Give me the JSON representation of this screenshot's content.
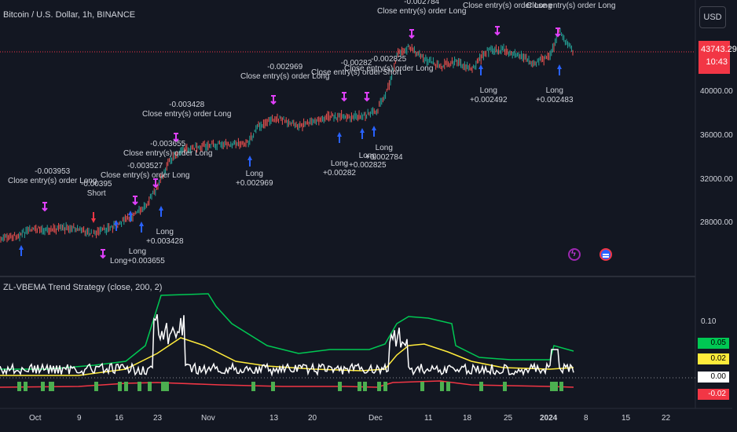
{
  "header": {
    "symbol_title": "Bitcoin / U.S. Dollar, 1h, BINANCE",
    "currency_button": "USD"
  },
  "price_tag": {
    "price": "43743.29",
    "countdown": "10:43",
    "color": "#f23645"
  },
  "price_axis": {
    "ticks": [
      "40000.00",
      "36000.00",
      "32000.00",
      "28000.00"
    ]
  },
  "indicator": {
    "title": "ZL-VBEMA Trend Strategy (close, 200, 2)",
    "axis_tick": "0.10",
    "badges": [
      {
        "value": "0.05",
        "bg": "#00c853",
        "fg": "#000000"
      },
      {
        "value": "0.02",
        "bg": "#ffeb3b",
        "fg": "#000000"
      },
      {
        "value": "0.00",
        "bg": "#ffffff",
        "fg": "#000000"
      },
      {
        "value": "-0.02",
        "bg": "#f23645",
        "fg": "#ffffff"
      }
    ]
  },
  "time_axis": {
    "ticks": [
      "Oct",
      "9",
      "16",
      "23",
      "Nov",
      "13",
      "20",
      "Dec",
      "11",
      "18",
      "25",
      "2024",
      "8",
      "15",
      "22"
    ]
  },
  "trade_labels": [
    {
      "line1": "-0.003953",
      "line2": "Close entry(s) order Long"
    },
    {
      "line1": "-0.00395",
      "line2": "Short"
    },
    {
      "line1": "-0.003527",
      "line2": "Close entry(s) order Long"
    },
    {
      "line1": "-0.003655",
      "line2": "Close entry(s) order Long"
    },
    {
      "line1": "-0.003428",
      "line2": "Close entry(s) order Long"
    },
    {
      "line1": "-0.002969",
      "line2": "Close entry(s) order Long"
    },
    {
      "line1": "-0.002825",
      "line2": "Close entry(s) order Long"
    },
    {
      "line1": "-0.00282",
      "line2": "Close entry(s) order Short"
    },
    {
      "line1": "-0.002784",
      "line2": "Close entry(s) order Long"
    },
    {
      "line1": "",
      "line2": "Close entry(s) order Long"
    },
    {
      "line1": "",
      "line2": "Close entry(s) order Long"
    },
    {
      "line1": "Long",
      "line2": "+0.003428"
    },
    {
      "line1": "Long",
      "line2": "Long+0.003655"
    },
    {
      "line1": "Long",
      "line2": "+0.002969"
    },
    {
      "line1": "Long",
      "line2": "+0.00282"
    },
    {
      "line1": "Long",
      "line2": "+0.002825"
    },
    {
      "line1": "Long",
      "line2": "+0.002784"
    },
    {
      "line1": "Long",
      "line2": "+0.002492"
    },
    {
      "line1": "Long",
      "line2": "+0.002483"
    }
  ],
  "icons": {
    "bolt": "lightning-icon",
    "flag": "us-flag-icon"
  },
  "colors": {
    "background": "#131722",
    "candle_up": "#26a69a",
    "candle_down": "#ef5350",
    "long_arrow": "#2962ff",
    "close_marker": "#e040fb",
    "short_arrow": "#f23645",
    "upper_band": "#00c853",
    "mid_band": "#ffeb3b",
    "lower_band": "#f23645",
    "oscillator": "#ffffff",
    "signal_bars": "#4caf50"
  }
}
